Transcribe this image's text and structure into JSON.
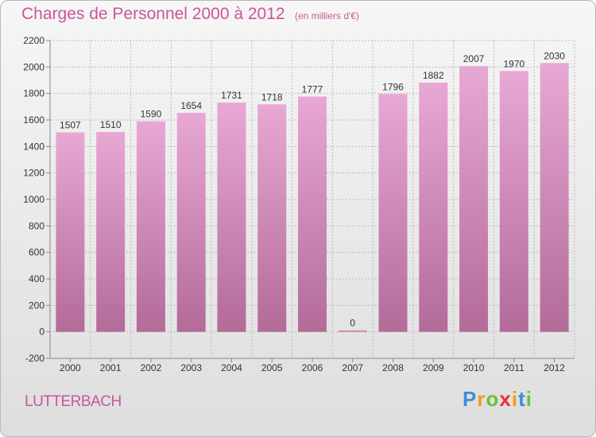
{
  "header": {
    "title": "Charges de Personnel 2000 à 2012",
    "unit_note": "(en milliers d'€)"
  },
  "footer": {
    "city": "LUTTERBACH",
    "brand_letters": [
      "P",
      "r",
      "o",
      "x",
      "i",
      "t",
      "i"
    ],
    "brand_colors": [
      "#3a8fd6",
      "#f39a1f",
      "#6fbf3a",
      "#e8322e",
      "#f39a1f",
      "#3a8fd6",
      "#6fbf3a"
    ]
  },
  "colors": {
    "title": "#cc5599",
    "bar_top": "#e8a8d4",
    "bar_bottom": "#b36b99",
    "grid": "#bbbbbb",
    "axis": "#888888"
  },
  "chart_data": {
    "type": "bar",
    "categories": [
      "2000",
      "2001",
      "2002",
      "2003",
      "2004",
      "2005",
      "2006",
      "2007",
      "2008",
      "2009",
      "2010",
      "2011",
      "2012"
    ],
    "values": [
      1507,
      1510,
      1590,
      1654,
      1731,
      1718,
      1777,
      0,
      1796,
      1882,
      2007,
      1970,
      2030
    ],
    "yticks": [
      -200,
      0,
      200,
      400,
      600,
      800,
      1000,
      1200,
      1400,
      1600,
      1800,
      2000,
      2200
    ],
    "ylim": [
      -200,
      2200
    ],
    "grid": true,
    "legend": false
  }
}
